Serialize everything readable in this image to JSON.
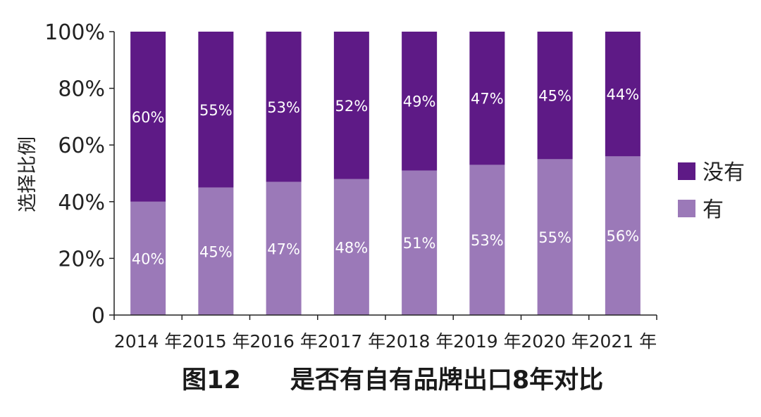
{
  "chart_data": {
    "type": "bar",
    "stacked": true,
    "categories": [
      "2014 年",
      "2015 年",
      "2016 年",
      "2017 年",
      "2018 年",
      "2019 年",
      "2020 年",
      "2021 年"
    ],
    "series": [
      {
        "name": "有",
        "values": [
          40,
          45,
          47,
          48,
          51,
          53,
          55,
          56
        ],
        "labels": [
          "40%",
          "45%",
          "47%",
          "48%",
          "51%",
          "53%",
          "55%",
          "56%"
        ],
        "color": "#9b79b8"
      },
      {
        "name": "没有",
        "values": [
          60,
          55,
          53,
          52,
          49,
          47,
          45,
          44
        ],
        "labels": [
          "60%",
          "55%",
          "53%",
          "52%",
          "49%",
          "47%",
          "45%",
          "44%"
        ],
        "color": "#5e1a86"
      }
    ],
    "ylabel": "选择比例",
    "xlabel": "",
    "ylim": [
      0,
      100
    ],
    "yticks": [
      "0",
      "20%",
      "40%",
      "60%",
      "80%",
      "100%"
    ],
    "legend": {
      "position": "right",
      "order": [
        "没有",
        "有"
      ]
    },
    "grid": false,
    "caption_number": "图12",
    "caption_title": "是否有自有品牌出口8年对比"
  }
}
